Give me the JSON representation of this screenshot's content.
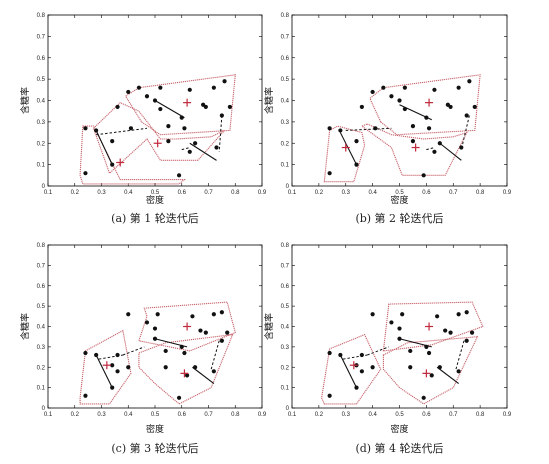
{
  "chart_data": [
    {
      "type": "scatter",
      "caption": "(a) 第 1 轮迭代后",
      "xlabel": "密度",
      "ylabel": "含糖率",
      "xlim": [
        0.1,
        0.9
      ],
      "ylim": [
        0,
        0.8
      ],
      "xticks": [
        "0.1",
        "0.2",
        "0.3",
        "0.4",
        "0.5",
        "0.6",
        "0.7",
        "0.8",
        "0.9"
      ],
      "yticks": [
        "0",
        "0.1",
        "0.2",
        "0.3",
        "0.4",
        "0.5",
        "0.6",
        "0.7",
        "0.8"
      ],
      "points": [
        [
          0.24,
          0.27
        ],
        [
          0.24,
          0.06
        ],
        [
          0.28,
          0.26
        ],
        [
          0.34,
          0.1
        ],
        [
          0.34,
          0.21
        ],
        [
          0.36,
          0.37
        ],
        [
          0.4,
          0.44
        ],
        [
          0.41,
          0.27
        ],
        [
          0.44,
          0.46
        ],
        [
          0.47,
          0.42
        ],
        [
          0.5,
          0.4
        ],
        [
          0.52,
          0.36
        ],
        [
          0.52,
          0.46
        ],
        [
          0.55,
          0.21
        ],
        [
          0.55,
          0.28
        ],
        [
          0.6,
          0.32
        ],
        [
          0.61,
          0.27
        ],
        [
          0.63,
          0.16
        ],
        [
          0.63,
          0.45
        ],
        [
          0.65,
          0.2
        ],
        [
          0.68,
          0.38
        ],
        [
          0.69,
          0.37
        ],
        [
          0.72,
          0.46
        ],
        [
          0.73,
          0.18
        ],
        [
          0.75,
          0.33
        ],
        [
          0.76,
          0.49
        ],
        [
          0.78,
          0.37
        ],
        [
          0.59,
          0.05
        ]
      ],
      "centers": [
        [
          0.37,
          0.11
        ],
        [
          0.51,
          0.2
        ],
        [
          0.62,
          0.39
        ]
      ],
      "solid_links": [
        [
          [
            0.28,
            0.26
          ],
          [
            0.34,
            0.1
          ]
        ],
        [
          [
            0.5,
            0.4
          ],
          [
            0.61,
            0.32
          ]
        ],
        [
          [
            0.63,
            0.2
          ],
          [
            0.73,
            0.12
          ]
        ]
      ],
      "dashed_links": [
        [
          [
            0.28,
            0.24
          ],
          [
            0.47,
            0.27
          ]
        ],
        [
          [
            0.6,
            0.17
          ],
          [
            0.63,
            0.18
          ]
        ],
        [
          [
            0.75,
            0.33
          ],
          [
            0.74,
            0.16
          ]
        ]
      ],
      "regions": [
        [
          [
            0.23,
            0.28
          ],
          [
            0.27,
            0.28
          ],
          [
            0.37,
            0.03
          ],
          [
            0.61,
            0.03
          ],
          [
            0.59,
            0.01
          ],
          [
            0.23,
            0.01
          ],
          [
            0.22,
            0.05
          ]
        ],
        [
          [
            0.27,
            0.27
          ],
          [
            0.37,
            0.39
          ],
          [
            0.44,
            0.35
          ],
          [
            0.52,
            0.22
          ],
          [
            0.58,
            0.22
          ],
          [
            0.71,
            0.23
          ],
          [
            0.76,
            0.26
          ],
          [
            0.66,
            0.12
          ],
          [
            0.52,
            0.12
          ],
          [
            0.47,
            0.22
          ],
          [
            0.33,
            0.06
          ]
        ],
        [
          [
            0.45,
            0.3
          ],
          [
            0.52,
            0.24
          ],
          [
            0.78,
            0.26
          ],
          [
            0.8,
            0.52
          ],
          [
            0.44,
            0.46
          ],
          [
            0.39,
            0.42
          ]
        ]
      ]
    },
    {
      "type": "scatter",
      "caption": "(b) 第 2 轮迭代后",
      "xlabel": "密度",
      "ylabel": "含糖率",
      "xlim": [
        0.1,
        0.9
      ],
      "ylim": [
        0,
        0.8
      ],
      "xticks": [
        "0.1",
        "0.2",
        "0.3",
        "0.4",
        "0.5",
        "0.6",
        "0.7",
        "0.8",
        "0.9"
      ],
      "yticks": [
        "0",
        "0.1",
        "0.2",
        "0.3",
        "0.4",
        "0.5",
        "0.6",
        "0.7",
        "0.8"
      ],
      "points": [
        [
          0.24,
          0.27
        ],
        [
          0.24,
          0.06
        ],
        [
          0.28,
          0.26
        ],
        [
          0.34,
          0.1
        ],
        [
          0.34,
          0.21
        ],
        [
          0.36,
          0.37
        ],
        [
          0.4,
          0.44
        ],
        [
          0.41,
          0.27
        ],
        [
          0.44,
          0.46
        ],
        [
          0.47,
          0.42
        ],
        [
          0.5,
          0.4
        ],
        [
          0.52,
          0.36
        ],
        [
          0.52,
          0.46
        ],
        [
          0.55,
          0.21
        ],
        [
          0.55,
          0.28
        ],
        [
          0.6,
          0.32
        ],
        [
          0.61,
          0.27
        ],
        [
          0.63,
          0.16
        ],
        [
          0.63,
          0.45
        ],
        [
          0.65,
          0.2
        ],
        [
          0.68,
          0.38
        ],
        [
          0.69,
          0.37
        ],
        [
          0.72,
          0.46
        ],
        [
          0.73,
          0.18
        ],
        [
          0.75,
          0.33
        ],
        [
          0.76,
          0.49
        ],
        [
          0.78,
          0.37
        ],
        [
          0.59,
          0.05
        ]
      ],
      "centers": [
        [
          0.3,
          0.18
        ],
        [
          0.56,
          0.18
        ],
        [
          0.61,
          0.39
        ]
      ],
      "solid_links": [
        [
          [
            0.28,
            0.25
          ],
          [
            0.34,
            0.1
          ]
        ],
        [
          [
            0.5,
            0.38
          ],
          [
            0.62,
            0.31
          ]
        ],
        [
          [
            0.65,
            0.2
          ],
          [
            0.73,
            0.12
          ]
        ]
      ],
      "dashed_links": [
        [
          [
            0.3,
            0.26
          ],
          [
            0.47,
            0.27
          ]
        ],
        [
          [
            0.6,
            0.17
          ],
          [
            0.63,
            0.18
          ]
        ],
        [
          [
            0.76,
            0.33
          ],
          [
            0.73,
            0.17
          ]
        ]
      ],
      "regions": [
        [
          [
            0.22,
            0.02
          ],
          [
            0.33,
            0.02
          ],
          [
            0.37,
            0.19
          ],
          [
            0.36,
            0.25
          ],
          [
            0.27,
            0.28
          ],
          [
            0.24,
            0.26
          ]
        ],
        [
          [
            0.38,
            0.29
          ],
          [
            0.47,
            0.24
          ],
          [
            0.59,
            0.22
          ],
          [
            0.7,
            0.23
          ],
          [
            0.75,
            0.25
          ],
          [
            0.67,
            0.05
          ],
          [
            0.51,
            0.05
          ],
          [
            0.47,
            0.18
          ],
          [
            0.36,
            0.28
          ]
        ],
        [
          [
            0.43,
            0.3
          ],
          [
            0.49,
            0.24
          ],
          [
            0.78,
            0.26
          ],
          [
            0.8,
            0.52
          ],
          [
            0.44,
            0.46
          ],
          [
            0.39,
            0.41
          ]
        ]
      ]
    },
    {
      "type": "scatter",
      "caption": "(c) 第 3 轮迭代后",
      "xlabel": "密度",
      "ylabel": "含糖率",
      "xlim": [
        0.1,
        0.9
      ],
      "ylim": [
        0,
        0.8
      ],
      "xticks": [
        "0.1",
        "0.2",
        "0.3",
        "0.4",
        "0.5",
        "0.6",
        "0.7",
        "0.8",
        "0.9"
      ],
      "yticks": [
        "0",
        "0.1",
        "0.2",
        "0.3",
        "0.4",
        "0.5",
        "0.6",
        "0.7",
        "0.8"
      ],
      "points": [
        [
          0.24,
          0.27
        ],
        [
          0.24,
          0.06
        ],
        [
          0.28,
          0.26
        ],
        [
          0.34,
          0.1
        ],
        [
          0.34,
          0.21
        ],
        [
          0.36,
          0.18
        ],
        [
          0.36,
          0.26
        ],
        [
          0.4,
          0.2
        ],
        [
          0.4,
          0.46
        ],
        [
          0.47,
          0.42
        ],
        [
          0.5,
          0.39
        ],
        [
          0.5,
          0.34
        ],
        [
          0.51,
          0.46
        ],
        [
          0.54,
          0.2
        ],
        [
          0.54,
          0.28
        ],
        [
          0.6,
          0.3
        ],
        [
          0.61,
          0.27
        ],
        [
          0.62,
          0.16
        ],
        [
          0.64,
          0.45
        ],
        [
          0.65,
          0.2
        ],
        [
          0.67,
          0.38
        ],
        [
          0.69,
          0.37
        ],
        [
          0.72,
          0.46
        ],
        [
          0.72,
          0.18
        ],
        [
          0.75,
          0.33
        ],
        [
          0.75,
          0.47
        ],
        [
          0.77,
          0.37
        ],
        [
          0.59,
          0.05
        ]
      ],
      "centers": [
        [
          0.32,
          0.21
        ],
        [
          0.61,
          0.17
        ],
        [
          0.62,
          0.4
        ]
      ],
      "solid_links": [
        [
          [
            0.28,
            0.26
          ],
          [
            0.34,
            0.1
          ]
        ],
        [
          [
            0.5,
            0.34
          ],
          [
            0.62,
            0.3
          ]
        ],
        [
          [
            0.64,
            0.2
          ],
          [
            0.72,
            0.12
          ]
        ]
      ],
      "dashed_links": [
        [
          [
            0.29,
            0.24
          ],
          [
            0.38,
            0.26
          ]
        ],
        [
          [
            0.38,
            0.26
          ],
          [
            0.46,
            0.3
          ]
        ],
        [
          [
            0.74,
            0.33
          ],
          [
            0.71,
            0.19
          ]
        ]
      ],
      "regions": [
        [
          [
            0.22,
            0.02
          ],
          [
            0.33,
            0.02
          ],
          [
            0.41,
            0.17
          ],
          [
            0.38,
            0.38
          ],
          [
            0.24,
            0.28
          ],
          [
            0.22,
            0.05
          ]
        ],
        [
          [
            0.44,
            0.27
          ],
          [
            0.54,
            0.32
          ],
          [
            0.79,
            0.36
          ],
          [
            0.71,
            0.1
          ],
          [
            0.59,
            0.02
          ],
          [
            0.5,
            0.12
          ],
          [
            0.44,
            0.2
          ]
        ],
        [
          [
            0.44,
            0.33
          ],
          [
            0.47,
            0.45
          ],
          [
            0.46,
            0.49
          ],
          [
            0.77,
            0.52
          ],
          [
            0.8,
            0.37
          ],
          [
            0.63,
            0.28
          ]
        ]
      ]
    },
    {
      "type": "scatter",
      "caption": "(d) 第 4 轮迭代后",
      "xlabel": "密度",
      "ylabel": "含糖率",
      "xlim": [
        0.1,
        0.9
      ],
      "ylim": [
        0,
        0.8
      ],
      "xticks": [
        "0.1",
        "0.2",
        "0.3",
        "0.4",
        "0.5",
        "0.6",
        "0.7",
        "0.8",
        "0.9"
      ],
      "yticks": [
        "0",
        "0.1",
        "0.2",
        "0.3",
        "0.4",
        "0.5",
        "0.6",
        "0.7",
        "0.8"
      ],
      "points": [
        [
          0.24,
          0.27
        ],
        [
          0.24,
          0.06
        ],
        [
          0.28,
          0.26
        ],
        [
          0.34,
          0.1
        ],
        [
          0.34,
          0.21
        ],
        [
          0.36,
          0.18
        ],
        [
          0.36,
          0.26
        ],
        [
          0.4,
          0.2
        ],
        [
          0.4,
          0.46
        ],
        [
          0.47,
          0.42
        ],
        [
          0.5,
          0.39
        ],
        [
          0.5,
          0.34
        ],
        [
          0.51,
          0.46
        ],
        [
          0.54,
          0.2
        ],
        [
          0.54,
          0.28
        ],
        [
          0.6,
          0.3
        ],
        [
          0.61,
          0.27
        ],
        [
          0.62,
          0.16
        ],
        [
          0.64,
          0.45
        ],
        [
          0.65,
          0.2
        ],
        [
          0.67,
          0.38
        ],
        [
          0.69,
          0.37
        ],
        [
          0.72,
          0.46
        ],
        [
          0.72,
          0.18
        ],
        [
          0.75,
          0.33
        ],
        [
          0.75,
          0.47
        ],
        [
          0.77,
          0.37
        ],
        [
          0.59,
          0.05
        ]
      ],
      "centers": [
        [
          0.33,
          0.21
        ],
        [
          0.6,
          0.17
        ],
        [
          0.61,
          0.4
        ]
      ],
      "solid_links": [
        [
          [
            0.28,
            0.26
          ],
          [
            0.34,
            0.1
          ]
        ],
        [
          [
            0.5,
            0.34
          ],
          [
            0.62,
            0.3
          ]
        ],
        [
          [
            0.64,
            0.2
          ],
          [
            0.72,
            0.12
          ]
        ]
      ],
      "dashed_links": [
        [
          [
            0.29,
            0.24
          ],
          [
            0.38,
            0.26
          ]
        ],
        [
          [
            0.38,
            0.26
          ],
          [
            0.46,
            0.3
          ]
        ],
        [
          [
            0.74,
            0.33
          ],
          [
            0.71,
            0.19
          ]
        ]
      ],
      "regions": [
        [
          [
            0.22,
            0.02
          ],
          [
            0.34,
            0.02
          ],
          [
            0.43,
            0.19
          ],
          [
            0.37,
            0.36
          ],
          [
            0.24,
            0.29
          ],
          [
            0.21,
            0.05
          ]
        ],
        [
          [
            0.44,
            0.26
          ],
          [
            0.53,
            0.32
          ],
          [
            0.79,
            0.35
          ],
          [
            0.7,
            0.1
          ],
          [
            0.59,
            0.02
          ],
          [
            0.5,
            0.1
          ],
          [
            0.44,
            0.19
          ]
        ],
        [
          [
            0.44,
            0.28
          ],
          [
            0.46,
            0.51
          ],
          [
            0.77,
            0.52
          ],
          [
            0.81,
            0.4
          ],
          [
            0.62,
            0.31
          ]
        ]
      ]
    }
  ]
}
